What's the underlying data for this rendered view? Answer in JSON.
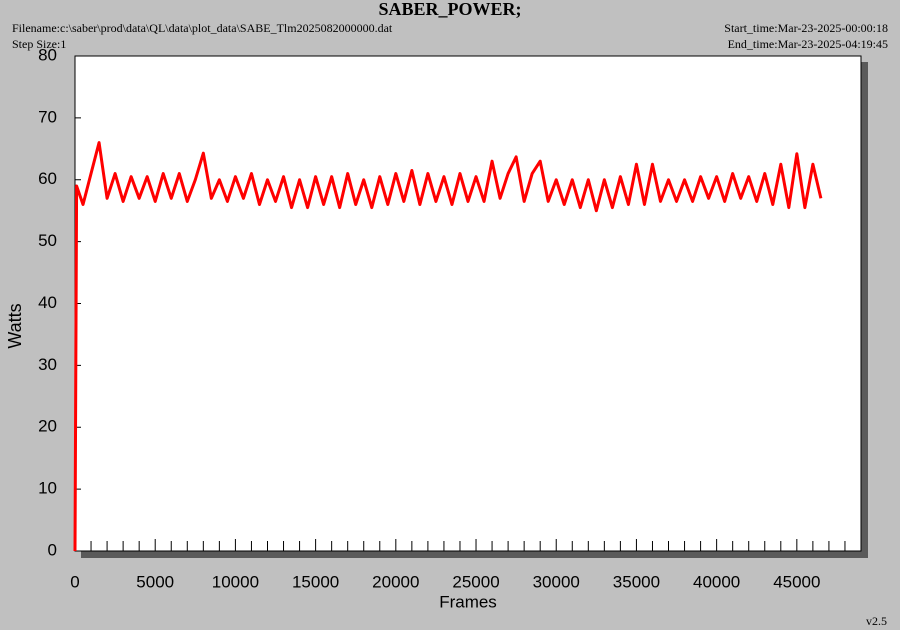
{
  "chart_data": {
    "type": "line",
    "title": "SABER_POWER;",
    "filename": "Filename:c:\\saber\\prod\\data\\QL\\data\\plot_data\\SABE_Tlm2025082000000.dat",
    "step_size": "Step Size:1",
    "start_time": "Start_time:Mar-23-2025-00:00:18",
    "end_time": "End_time:Mar-23-2025-04:19:45",
    "version": "v2.5",
    "x_label": "Frames",
    "y_label": "Watts",
    "color": "#ff0000",
    "xlim": [
      0,
      49000
    ],
    "ylim": [
      0,
      80
    ],
    "xticks": [
      0,
      5000,
      10000,
      15000,
      20000,
      25000,
      30000,
      35000,
      40000,
      45000
    ],
    "xminorticks": [
      1000,
      2000,
      3000,
      4000,
      6000,
      7000,
      8000,
      9000,
      11000,
      12000,
      13000,
      14000,
      16000,
      17000,
      18000,
      19000,
      21000,
      22000,
      23000,
      24000,
      26000,
      27000,
      28000,
      29000,
      31000,
      32000,
      33000,
      34000,
      36000,
      37000,
      38000,
      39000,
      41000,
      42000,
      43000,
      44000,
      46000,
      47000,
      48000
    ],
    "yticks": [
      0,
      10,
      20,
      30,
      40,
      50,
      60,
      70,
      80
    ],
    "x": [
      0,
      100,
      500,
      1000,
      1500,
      2000,
      2500,
      3000,
      3500,
      4000,
      4500,
      5000,
      5500,
      6000,
      6500,
      7000,
      7500,
      8000,
      8500,
      9000,
      9500,
      10000,
      10500,
      11000,
      11500,
      12000,
      12500,
      13000,
      13500,
      14000,
      14500,
      15000,
      15500,
      16000,
      16500,
      17000,
      17500,
      18000,
      18500,
      19000,
      19500,
      20000,
      20500,
      21000,
      21500,
      22000,
      22500,
      23000,
      23500,
      24000,
      24500,
      25000,
      25500,
      26000,
      26500,
      27000,
      27500,
      28000,
      28500,
      29000,
      29500,
      30000,
      30500,
      31000,
      31500,
      32000,
      32500,
      33000,
      33500,
      34000,
      34500,
      35000,
      35500,
      36000,
      36500,
      37000,
      37500,
      38000,
      38500,
      39000,
      39500,
      40000,
      40500,
      41000,
      41500,
      42000,
      42500,
      43000,
      43500,
      44000,
      44500,
      45000,
      45500,
      46000,
      46500
    ],
    "values": [
      0,
      59,
      56,
      61,
      66,
      57,
      61,
      56.5,
      60.5,
      57,
      60.5,
      56.5,
      61,
      57,
      61,
      56.5,
      60,
      64.3,
      57,
      60,
      56.5,
      60.5,
      57,
      61,
      56,
      60,
      56.5,
      60.5,
      55.5,
      60,
      55.5,
      60.5,
      56,
      60.5,
      55.5,
      61,
      56,
      60,
      55.5,
      60.5,
      56,
      61,
      56.5,
      61.5,
      56,
      61,
      56.5,
      60.5,
      56,
      61,
      56.5,
      60.5,
      56.5,
      63,
      57,
      61,
      63.7,
      56.5,
      61,
      63,
      56.5,
      60,
      56,
      60,
      55.5,
      60,
      55,
      60,
      55.5,
      60.5,
      56,
      62.5,
      56,
      62.5,
      56.5,
      60,
      56.5,
      60,
      56.5,
      60.5,
      57,
      60.5,
      56.5,
      61,
      57,
      60.5,
      56.5,
      61,
      56,
      62.5,
      55.5,
      64.2,
      55.5,
      62.5,
      57
    ]
  }
}
